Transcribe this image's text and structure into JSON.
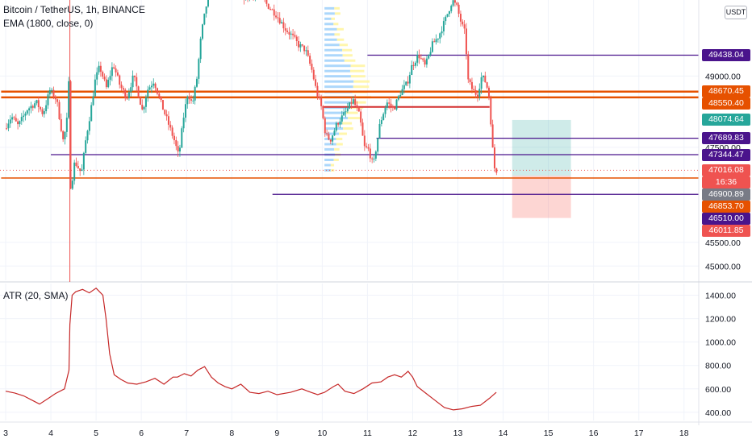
{
  "header": {
    "symbol": "Bitcoin / TetherUS, 1h, BINANCE",
    "indicator": "EMA (1800, close, 0)",
    "currency_button": "USDT"
  },
  "atr_panel": {
    "label": "ATR (20, SMA)"
  },
  "colors": {
    "up": "#26a69a",
    "down": "#ef5350",
    "purple": "#4a148c",
    "orange": "#e65100",
    "red_line": "#d32f2f",
    "atr_line": "#c62828",
    "teal_zone": "#26a69a",
    "red_zone": "#f44336",
    "vp_blue": "#90caf9",
    "vp_yellow": "#fff59d"
  },
  "price_tags": [
    {
      "text": "49438.04",
      "price": 49438.04,
      "bg": "#4a148c"
    },
    {
      "text": "48670.45",
      "price": 48670.45,
      "bg": "#e65100"
    },
    {
      "text": "48550.40",
      "price": 48550.4,
      "bg": "#e65100"
    },
    {
      "text": "48074.64",
      "price": 48074.64,
      "bg": "#26a69a"
    },
    {
      "text": "47689.83",
      "price": 47689.83,
      "bg": "#4a148c"
    },
    {
      "text": "47344.47",
      "price": 47344.47,
      "bg": "#4a148c"
    },
    {
      "text": "47016.08",
      "price": 47016.08,
      "bg": "#ef5350"
    },
    {
      "text": "16:36",
      "price": 46930,
      "bg": "#ef5350"
    },
    {
      "text": "46900.89",
      "price": 46900.89,
      "bg": "#787b86"
    },
    {
      "text": "46853.70",
      "price": 46853.7,
      "bg": "#e65100"
    },
    {
      "text": "46510.00",
      "price": 46510.0,
      "bg": "#4a148c"
    },
    {
      "text": "46011.85",
      "price": 46011.85,
      "bg": "#ef5350"
    }
  ],
  "chart_data": [
    {
      "type": "candlestick",
      "title": "Bitcoin / TetherUS, 1h, BINANCE",
      "x_ticks": [
        "3",
        "4",
        "5",
        "6",
        "7",
        "8",
        "9",
        "10",
        "11",
        "12",
        "13",
        "14",
        "15",
        "16",
        "17",
        "18"
      ],
      "y_ticks": [
        {
          "value": 45000,
          "label": "45000.00"
        },
        {
          "value": 45500,
          "label": "45500.00"
        },
        {
          "value": 47500,
          "label": "47500.00"
        },
        {
          "value": 49000,
          "label": "49000.00"
        }
      ],
      "ylim": [
        44700,
        50600
      ],
      "horizontal_levels": [
        {
          "price": 49438.04,
          "from_day": 11.0,
          "style": "purple"
        },
        {
          "price": 48670.45,
          "from_day": 2.9,
          "style": "orange-thick"
        },
        {
          "price": 48550.4,
          "from_day": 2.9,
          "style": "orange-thick"
        },
        {
          "price": 48350,
          "from_day": 10.0,
          "to_day": 13.7,
          "style": "red"
        },
        {
          "price": 47689.83,
          "from_day": 11.2,
          "style": "purple"
        },
        {
          "price": 47344.47,
          "from_day": 4.0,
          "style": "purple"
        },
        {
          "price": 46853.7,
          "from_day": 2.9,
          "style": "orange"
        },
        {
          "price": 46510.0,
          "from_day": 8.9,
          "style": "purple"
        }
      ],
      "position_zones": [
        {
          "from_day": 14.2,
          "to_day": 15.5,
          "top": 48074.64,
          "bottom": 46900.89,
          "kind": "target"
        },
        {
          "from_day": 14.2,
          "to_day": 15.5,
          "top": 46900.89,
          "bottom": 46011.85,
          "kind": "stop"
        }
      ],
      "price_path": [
        [
          3.0,
          47900
        ],
        [
          3.15,
          48150
        ],
        [
          3.3,
          47950
        ],
        [
          3.5,
          48300
        ],
        [
          3.7,
          48450
        ],
        [
          3.85,
          48200
        ],
        [
          4.0,
          48700
        ],
        [
          4.15,
          48500
        ],
        [
          4.3,
          47600
        ],
        [
          4.38,
          48100
        ],
        [
          4.42,
          48900
        ],
        [
          4.46,
          46600
        ],
        [
          4.55,
          47200
        ],
        [
          4.7,
          46950
        ],
        [
          4.8,
          47700
        ],
        [
          4.9,
          48250
        ],
        [
          5.0,
          48900
        ],
        [
          5.1,
          49200
        ],
        [
          5.25,
          48750
        ],
        [
          5.4,
          49250
        ],
        [
          5.55,
          48800
        ],
        [
          5.7,
          48550
        ],
        [
          5.85,
          49000
        ],
        [
          5.95,
          48650
        ],
        [
          6.05,
          48250
        ],
        [
          6.15,
          48700
        ],
        [
          6.3,
          48900
        ],
        [
          6.45,
          48450
        ],
        [
          6.6,
          48050
        ],
        [
          6.75,
          47650
        ],
        [
          6.85,
          47300
        ],
        [
          6.95,
          48100
        ],
        [
          7.05,
          48650
        ],
        [
          7.15,
          48400
        ],
        [
          7.25,
          48950
        ],
        [
          7.35,
          49900
        ],
        [
          7.5,
          50700
        ],
        [
          7.8,
          51200
        ],
        [
          8.0,
          50900
        ],
        [
          8.2,
          50700
        ],
        [
          8.4,
          50650
        ],
        [
          8.6,
          50800
        ],
        [
          8.8,
          50500
        ],
        [
          9.0,
          50300
        ],
        [
          9.2,
          50000
        ],
        [
          9.35,
          49850
        ],
        [
          9.5,
          49650
        ],
        [
          9.65,
          49550
        ],
        [
          9.8,
          49100
        ],
        [
          9.9,
          48650
        ],
        [
          10.0,
          48350
        ],
        [
          10.1,
          47750
        ],
        [
          10.2,
          47650
        ],
        [
          10.35,
          48000
        ],
        [
          10.55,
          48250
        ],
        [
          10.7,
          48500
        ],
        [
          10.85,
          48150
        ],
        [
          10.95,
          47500
        ],
        [
          11.05,
          47450
        ],
        [
          11.15,
          47100
        ],
        [
          11.3,
          48000
        ],
        [
          11.45,
          48450
        ],
        [
          11.6,
          48300
        ],
        [
          11.75,
          48650
        ],
        [
          11.9,
          48850
        ],
        [
          12.0,
          49200
        ],
        [
          12.15,
          49450
        ],
        [
          12.3,
          49200
        ],
        [
          12.45,
          49650
        ],
        [
          12.6,
          49850
        ],
        [
          12.75,
          50200
        ],
        [
          12.9,
          50600
        ],
        [
          13.0,
          50450
        ],
        [
          13.1,
          50100
        ],
        [
          13.18,
          49900
        ],
        [
          13.25,
          48900
        ],
        [
          13.35,
          48700
        ],
        [
          13.45,
          48600
        ],
        [
          13.55,
          49000
        ],
        [
          13.65,
          48850
        ],
        [
          13.72,
          48500
        ],
        [
          13.78,
          47600
        ],
        [
          13.82,
          47100
        ],
        [
          13.85,
          47016
        ]
      ]
    },
    {
      "type": "line",
      "title": "ATR (20, SMA)",
      "y_ticks": [
        {
          "value": 400,
          "label": "400.00"
        },
        {
          "value": 600,
          "label": "600.00"
        },
        {
          "value": 800,
          "label": "800.00"
        },
        {
          "value": 1000,
          "label": "1000.00"
        },
        {
          "value": 1200,
          "label": "1200.00"
        },
        {
          "value": 1400,
          "label": "1400.00"
        }
      ],
      "ylim": [
        330,
        1500
      ],
      "x": [
        3.0,
        3.2,
        3.4,
        3.6,
        3.75,
        3.95,
        4.1,
        4.3,
        4.4,
        4.42,
        4.47,
        4.55,
        4.7,
        4.85,
        5.0,
        5.15,
        5.22,
        5.3,
        5.4,
        5.55,
        5.7,
        5.9,
        6.1,
        6.3,
        6.5,
        6.7,
        6.8,
        6.95,
        7.1,
        7.25,
        7.4,
        7.55,
        7.7,
        7.85,
        8.0,
        8.2,
        8.4,
        8.6,
        8.8,
        9.0,
        9.3,
        9.55,
        9.75,
        9.9,
        10.05,
        10.25,
        10.35,
        10.5,
        10.7,
        10.9,
        11.1,
        11.3,
        11.45,
        11.6,
        11.75,
        11.9,
        12.0,
        12.1,
        12.3,
        12.5,
        12.7,
        12.9,
        13.1,
        13.3,
        13.5,
        13.7,
        13.85
      ],
      "y": [
        580,
        565,
        540,
        500,
        470,
        520,
        560,
        600,
        760,
        1150,
        1400,
        1430,
        1450,
        1420,
        1460,
        1400,
        1200,
        900,
        720,
        680,
        650,
        640,
        660,
        690,
        640,
        700,
        700,
        730,
        710,
        760,
        790,
        700,
        650,
        620,
        600,
        640,
        570,
        560,
        580,
        550,
        570,
        600,
        570,
        550,
        570,
        620,
        640,
        580,
        560,
        600,
        650,
        660,
        700,
        720,
        700,
        750,
        700,
        620,
        560,
        500,
        440,
        420,
        430,
        450,
        460,
        520,
        570
      ]
    }
  ]
}
